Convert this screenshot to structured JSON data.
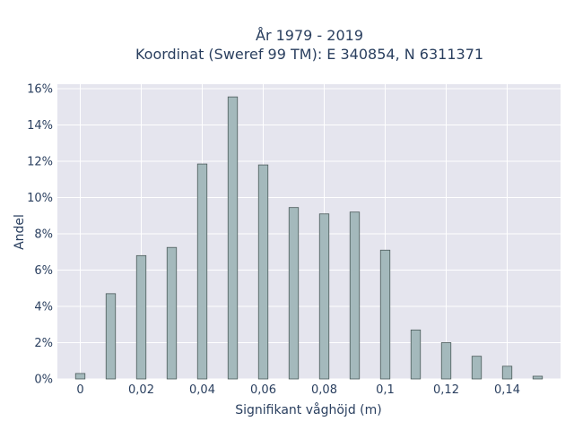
{
  "chart_data": {
    "type": "bar",
    "title_line1": "År 1979 - 2019",
    "title_line2": "Koordinat (Sweref 99 TM): E 340854, N 6311371",
    "xlabel": "Signifikant våghöjd (m)",
    "ylabel": "Andel",
    "x": [
      0,
      0.01,
      0.02,
      0.03,
      0.04,
      0.05,
      0.06,
      0.07,
      0.08,
      0.09,
      0.1,
      0.11,
      0.12,
      0.13,
      0.14,
      0.15
    ],
    "values": [
      0.3,
      4.7,
      6.8,
      7.25,
      11.85,
      15.55,
      11.8,
      9.45,
      9.1,
      9.2,
      7.1,
      2.7,
      2.0,
      1.25,
      0.7,
      0.15
    ],
    "xlim": [
      -0.0075,
      0.1575
    ],
    "ylim": [
      0,
      16.25
    ],
    "x_ticks": [
      0,
      0.02,
      0.04,
      0.06,
      0.08,
      0.1,
      0.12,
      0.14
    ],
    "x_tick_labels": [
      "0",
      "0,02",
      "0,04",
      "0,06",
      "0,08",
      "0,1",
      "0,12",
      "0,14"
    ],
    "y_ticks": [
      0,
      2,
      4,
      6,
      8,
      10,
      12,
      14,
      16
    ],
    "y_tick_labels": [
      "0%",
      "2%",
      "4%",
      "6%",
      "8%",
      "10%",
      "12%",
      "14%",
      "16%"
    ],
    "grid": true,
    "colors": {
      "bar": "#a4b9bc",
      "bar_edge": "#4a5a5a",
      "plot_bg": "#e5e5ee",
      "text": "#2a3f5f"
    }
  }
}
